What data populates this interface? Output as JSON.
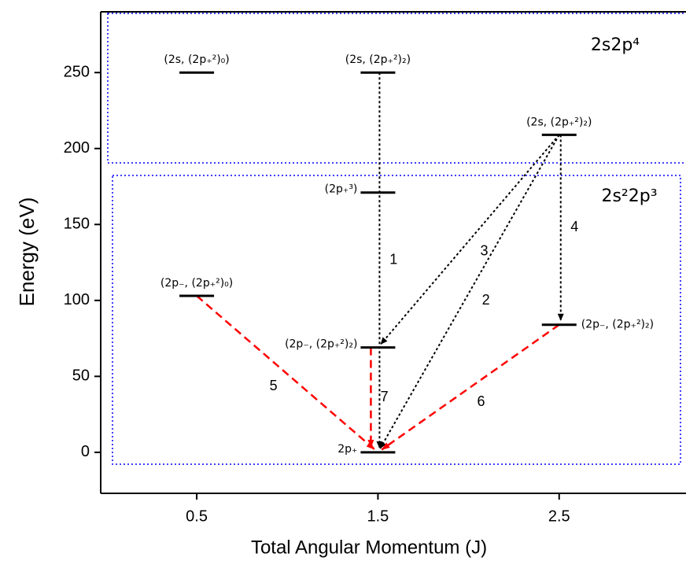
{
  "chart_data": {
    "type": "energy-levels",
    "xlabel": "Total Angular Momentum (J)",
    "ylabel": "Energy (eV)",
    "xlim": [
      -0.03,
      3.2
    ],
    "ylim": [
      -27,
      290
    ],
    "xticks": [
      0.5,
      1.5,
      2.5
    ],
    "yticks": [
      0,
      50,
      100,
      150,
      200,
      250
    ],
    "groups": [
      {
        "label": "2s2p⁴",
        "color": "#0000ff"
      },
      {
        "label": "2s²2p³",
        "color": "#0000ff"
      }
    ],
    "levels": [
      {
        "label": "(2s, (2p₊²)₀)",
        "J": 0.5,
        "E": 250,
        "label_position": "above"
      },
      {
        "label": "(2s, (2p₊²)₂)",
        "J": 1.5,
        "E": 250,
        "label_position": "above"
      },
      {
        "label": "(2s, (2p₊²)₂)",
        "J": 2.5,
        "E": 209,
        "label_position": "above"
      },
      {
        "label": "(2p₊³)",
        "J": 1.5,
        "E": 171,
        "label_position": "left"
      },
      {
        "label": "(2p₋, (2p₊²)₀)",
        "J": 0.5,
        "E": 103,
        "label_position": "above"
      },
      {
        "label": "(2p₋, (2p₊²)₂)",
        "J": 1.5,
        "E": 69,
        "label_position": "left"
      },
      {
        "label": "(2p₋, (2p₊²)₂)",
        "J": 2.5,
        "E": 84,
        "label_position": "right"
      },
      {
        "label": "2p₊",
        "J": 1.5,
        "E": 0,
        "label_position": "left"
      }
    ],
    "transitions": [
      {
        "label": "1",
        "from": 1,
        "to": 7,
        "color": "#000000"
      },
      {
        "label": "2",
        "from": 2,
        "to": 7,
        "color": "#000000"
      },
      {
        "label": "3",
        "from": 2,
        "to": 5,
        "color": "#000000"
      },
      {
        "label": "4",
        "from": 2,
        "to": 6,
        "color": "#000000"
      },
      {
        "label": "5",
        "from": 4,
        "to": 7,
        "color": "#ff0000"
      },
      {
        "label": "6",
        "from": 6,
        "to": 7,
        "color": "#ff0000"
      },
      {
        "label": "7",
        "from": 5,
        "to": 7,
        "color": "#ff0000"
      }
    ]
  }
}
